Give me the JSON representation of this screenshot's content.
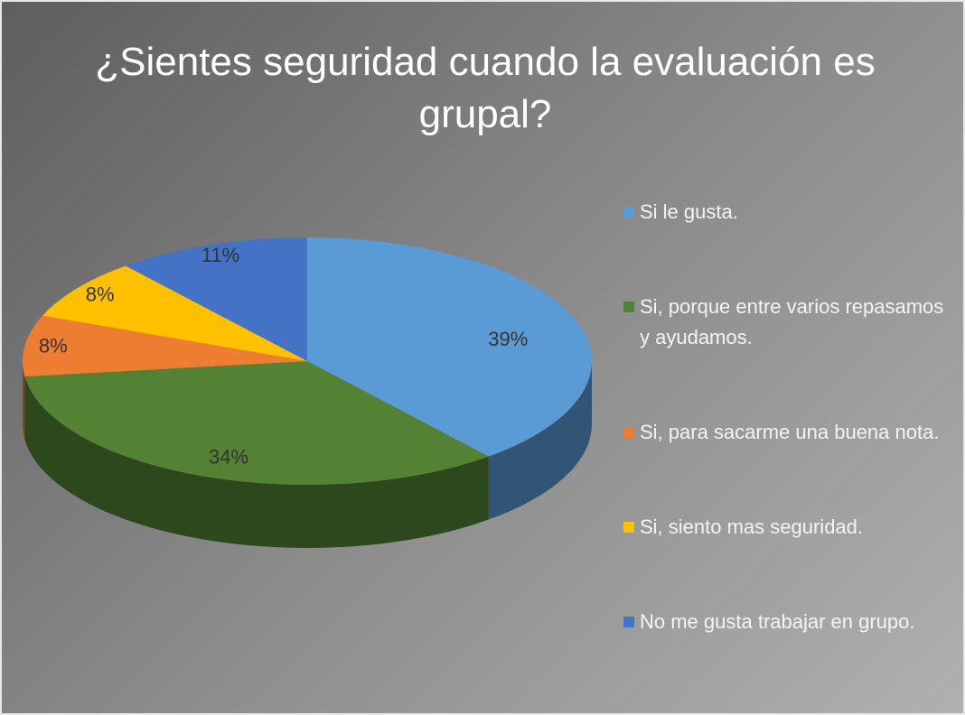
{
  "chart_data": {
    "type": "pie",
    "title": "¿Sientes seguridad cuando la evaluación es grupal?",
    "categories": [
      "Si le gusta.",
      "Si, porque entre varios repasamos y ayudamos.",
      "Si, para sacarme una buena nota.",
      "Si, siento mas seguridad.",
      "No me gusta trabajar en grupo."
    ],
    "values": [
      39,
      34,
      8,
      8,
      11
    ],
    "value_labels": [
      "39%",
      "34%",
      "8%",
      "8%",
      "11%"
    ],
    "colors": [
      "#5b9bd5",
      "#548235",
      "#ed7d31",
      "#ffc000",
      "#4472c4"
    ],
    "legend": "right"
  }
}
